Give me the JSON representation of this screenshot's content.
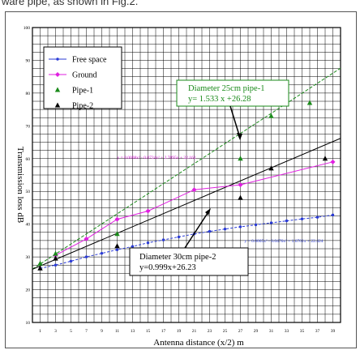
{
  "caption": "ware pipe, as shown in Fig.2.",
  "chart_data": {
    "type": "line",
    "xlabel": "Antenna distance (x/2)  m",
    "ylabel": "Transmission loss  dB",
    "x_ticks": [
      "1",
      "3",
      "5",
      "7",
      "9",
      "11",
      "13",
      "15",
      "17",
      "19",
      "21",
      "23",
      "25",
      "27",
      "29",
      "31",
      "33",
      "35",
      "37",
      "39"
    ],
    "y_ticks": [
      "10",
      "20",
      "30",
      "40",
      "50",
      "60",
      "70",
      "80",
      "90",
      "100"
    ],
    "xlim": [
      0,
      40
    ],
    "ylim": [
      10,
      100
    ],
    "grid": true,
    "legend_position": "top-left",
    "series": [
      {
        "name": "Free space",
        "color": "#2a3bd6",
        "marker": "dot",
        "line": "dashed",
        "points": [
          [
            1,
            26.5
          ],
          [
            3,
            27.5
          ],
          [
            5,
            28.7
          ],
          [
            7,
            30
          ],
          [
            9,
            31.1
          ],
          [
            11,
            32.2
          ],
          [
            13,
            33.2
          ],
          [
            15,
            34.3
          ],
          [
            17,
            35.2
          ],
          [
            19,
            36.1
          ],
          [
            21,
            37
          ],
          [
            23,
            37.8
          ],
          [
            25,
            38.5
          ],
          [
            27,
            39.2
          ],
          [
            29,
            39.8
          ],
          [
            31,
            40.4
          ],
          [
            33,
            41
          ],
          [
            35,
            41.6
          ],
          [
            37,
            42.1
          ],
          [
            39,
            42.8
          ]
        ]
      },
      {
        "name": "Ground",
        "color": "#e020e0",
        "marker": "diamond",
        "line": "solid",
        "points": [
          [
            3,
            30.5
          ],
          [
            7,
            35.5
          ],
          [
            11,
            41.5
          ],
          [
            15,
            44
          ],
          [
            21,
            50.5
          ],
          [
            27,
            52
          ],
          [
            39,
            59
          ]
        ]
      },
      {
        "name": "Pipe-1",
        "color": "#1a8a1a",
        "marker": "triangle",
        "line": "dashed",
        "points": [
          [
            1,
            28
          ],
          [
            3,
            31
          ],
          [
            11,
            37
          ],
          [
            27,
            60
          ],
          [
            31,
            73
          ],
          [
            36,
            77
          ]
        ]
      },
      {
        "name": "Pipe-2",
        "color": "#000000",
        "marker": "triangle",
        "line": "solid",
        "points": [
          [
            1,
            26.5
          ],
          [
            3,
            29.5
          ],
          [
            11,
            33.3
          ],
          [
            27,
            48
          ],
          [
            31,
            57
          ],
          [
            38,
            60
          ]
        ]
      }
    ],
    "annotations": {
      "pipe1_box": [
        "Diameter  25cm  pipe-1",
        "y= 1.533  x +26.28"
      ],
      "pipe2_box": [
        "Diameter  30cm  pipe-2",
        "y=0.999x+26.23"
      ],
      "ground_eq": "y = 0.0008x³ - 0.0724x² + 2.7095x + 22.162",
      "free_eq": "y = 0.0005x³ - 0.0476x² + 1.6701x + 22.424"
    }
  }
}
